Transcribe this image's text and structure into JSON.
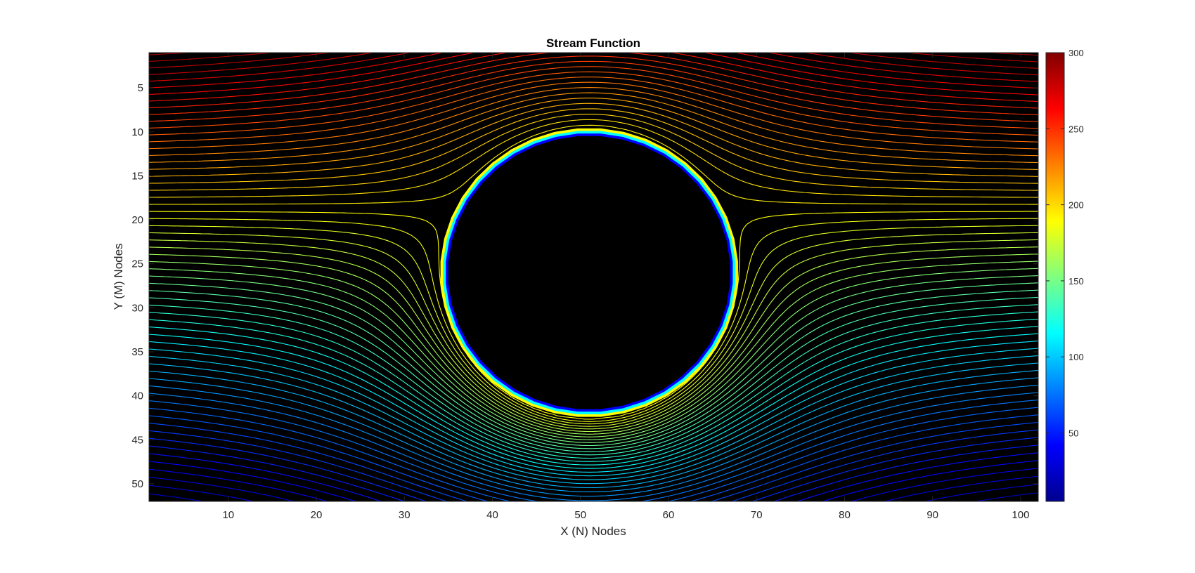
{
  "chart_data": {
    "type": "contour",
    "title": "Stream Function",
    "xlabel": "X (N) Nodes",
    "ylabel": "Y (M) Nodes",
    "xlim": [
      1,
      102
    ],
    "ylim": [
      1,
      52
    ],
    "y_axis_reversed": true,
    "x_ticks": [
      10,
      20,
      30,
      40,
      50,
      60,
      70,
      80,
      90,
      100
    ],
    "y_ticks": [
      5,
      10,
      15,
      20,
      25,
      30,
      35,
      40,
      45,
      50
    ],
    "colormap": "jet",
    "colorbar": {
      "range": [
        5,
        300
      ],
      "ticks": [
        50,
        100,
        150,
        200,
        250,
        300
      ]
    },
    "obstacle": {
      "shape": "polygonal circle",
      "center": [
        51,
        26
      ],
      "radius": 16.5,
      "fill_color": "#000000",
      "edge_colors": [
        "#ffff00",
        "#00ffff",
        "#0000ff"
      ]
    },
    "background_color": "#000000",
    "contour_levels": [
      5,
      300
    ],
    "contour_count": 68
  }
}
